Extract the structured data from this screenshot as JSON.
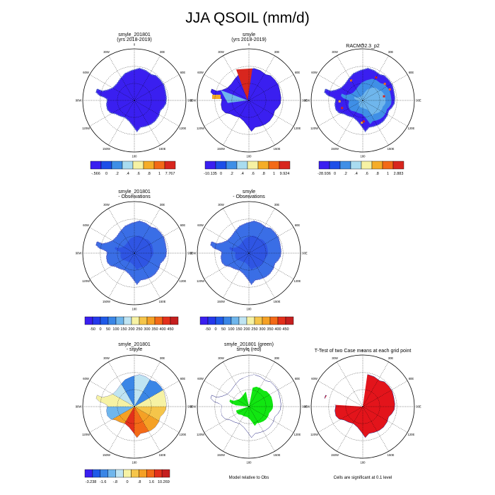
{
  "title": "JJA QSOIL (mm/d)",
  "longitude_labels": [
    "0",
    "30E",
    "60E",
    "90E",
    "120E",
    "150E",
    "180",
    "150W",
    "120W",
    "90W",
    "60W",
    "30W"
  ],
  "panels": [
    {
      "id": "p1",
      "title_lines": [
        "smyle_201801",
        "(yrs 2018-2019)"
      ],
      "style": "blue_plain",
      "colorbar": "cb1"
    },
    {
      "id": "p2",
      "title_lines": [
        "smyle",
        "(yrs 2018-2019)"
      ],
      "style": "blue_red",
      "colorbar": "cb2"
    },
    {
      "id": "p3",
      "title_lines": [
        "RACMO2.3_p2"
      ],
      "style": "blue_light",
      "colorbar": "cb3"
    },
    {
      "id": "p4",
      "title_lines": [
        "smyle_201801",
        "- Observations"
      ],
      "style": "blue_obs",
      "colorbar": "cb4"
    },
    {
      "id": "p5",
      "title_lines": [
        "smyle",
        "- Observations"
      ],
      "style": "blue_obs",
      "colorbar": "cb5"
    },
    {
      "id": "p6",
      "title_lines": [
        "smyle_201801",
        "- smyle"
      ],
      "style": "sector_diff",
      "colorbar": "cb6"
    },
    {
      "id": "p7",
      "title_lines": [
        "smyle_201801 (green)",
        "smyle (red)"
      ],
      "style": "green_red",
      "note": "Model relative to Obs"
    },
    {
      "id": "p8",
      "title_lines": [
        "T-Test of two Case means at each grid point"
      ],
      "style": "red_ttest",
      "note": "Cells are significant at 0.1 level"
    }
  ],
  "colorbars": {
    "cb1": {
      "labels": [
        "-.566",
        "0",
        ".2",
        ".4",
        ".6",
        ".8",
        "1",
        "7.767"
      ],
      "colors": [
        "#3a1ff0",
        "#1d4fe8",
        "#3f8fe6",
        "#a9dcf0",
        "#f6f2a4",
        "#f5ad28",
        "#f36a17",
        "#d8261e"
      ]
    },
    "cb2": {
      "labels": [
        "-10.135",
        "0",
        ".2",
        ".4",
        ".6",
        ".8",
        "1",
        "9.924"
      ],
      "colors": [
        "#3a1ff0",
        "#1d4fe8",
        "#3f8fe6",
        "#a9dcf0",
        "#f6f2a4",
        "#f5ad28",
        "#f36a17",
        "#d8261e"
      ]
    },
    "cb3": {
      "labels": [
        "-28.936",
        "0",
        ".2",
        ".4",
        ".6",
        ".8",
        "1",
        "2.883"
      ],
      "colors": [
        "#3a1ff0",
        "#1d4fe8",
        "#3f8fe6",
        "#a9dcf0",
        "#f6f2a4",
        "#f5ad28",
        "#f36a17",
        "#d8261e"
      ]
    },
    "cb4": {
      "labels": [
        "-50",
        "0",
        "50",
        "100",
        "150",
        "200",
        "250",
        "300",
        "350",
        "400",
        "450"
      ],
      "colors": [
        "#3a1ff0",
        "#2438ec",
        "#1f5ae8",
        "#3a86e6",
        "#6fb6ec",
        "#bfe4f2",
        "#f6f2a4",
        "#f5c54a",
        "#f5a125",
        "#f36a17",
        "#e3301b",
        "#c51f1f"
      ]
    },
    "cb5": {
      "labels": [
        "-50",
        "0",
        "50",
        "100",
        "150",
        "200",
        "250",
        "300",
        "350",
        "400",
        "450"
      ],
      "colors": [
        "#3a1ff0",
        "#2438ec",
        "#1f5ae8",
        "#3a86e6",
        "#6fb6ec",
        "#bfe4f2",
        "#f6f2a4",
        "#f5c54a",
        "#f5a125",
        "#f36a17",
        "#e3301b",
        "#c51f1f"
      ]
    },
    "cb6": {
      "labels": [
        "-3.238",
        "-1.6",
        "-.8",
        "0",
        ".8",
        "1.6",
        "10.269"
      ],
      "colors": [
        "#3a1ff0",
        "#1f5ae8",
        "#3a86e6",
        "#6fb6ec",
        "#bfe4f2",
        "#f6f2a4",
        "#f5c54a",
        "#f5a125",
        "#f36a17",
        "#e3301b",
        "#c51f1f"
      ]
    }
  },
  "colors": {
    "ice_dark": "#3a1ff0",
    "ice_mid": "#2f55e3",
    "ice_obs": "#3a6ee6",
    "green": "#11e611",
    "red": "#e3141b"
  }
}
